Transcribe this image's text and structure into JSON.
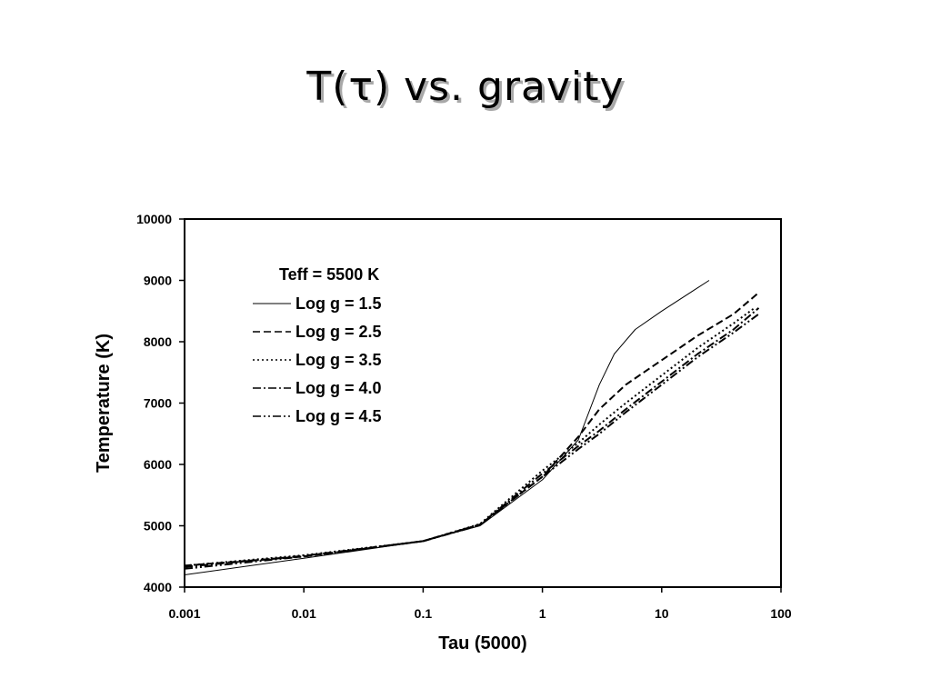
{
  "slide": {
    "title": "T(τ) vs. gravity"
  },
  "chart_data": {
    "type": "line",
    "title": "",
    "xlabel": "Tau (5000)",
    "ylabel": "Temperature (K)",
    "xscale": "log",
    "xlim": [
      0.001,
      100
    ],
    "ylim": [
      4000,
      10000
    ],
    "xticks": [
      "0.001",
      "0.01",
      "0.1",
      "1",
      "10",
      "100"
    ],
    "yticks": [
      "4000",
      "5000",
      "6000",
      "7000",
      "8000",
      "9000",
      "10000"
    ],
    "grid": false,
    "legend": {
      "placement": "top-left",
      "title": "Teff = 5500 K"
    },
    "series": [
      {
        "name": "Log g = 1.5",
        "dash": "solid",
        "x": [
          0.001,
          0.01,
          0.1,
          0.3,
          1,
          2,
          3,
          4,
          6,
          10,
          25
        ],
        "y": [
          4200,
          4470,
          4750,
          5000,
          5750,
          6400,
          7300,
          7800,
          8200,
          8500,
          9000
        ]
      },
      {
        "name": "Log g = 2.5",
        "dash": "dashed",
        "x": [
          0.001,
          0.01,
          0.1,
          0.3,
          1,
          2,
          3,
          5,
          10,
          20,
          40,
          65
        ],
        "y": [
          4350,
          4500,
          4750,
          5020,
          5800,
          6450,
          6900,
          7300,
          7700,
          8100,
          8450,
          8800
        ]
      },
      {
        "name": "Log g = 3.5",
        "dash": "dotted",
        "x": [
          0.001,
          0.01,
          0.1,
          0.3,
          1,
          2,
          3,
          5,
          10,
          20,
          40,
          60
        ],
        "y": [
          4350,
          4520,
          4750,
          5030,
          5900,
          6350,
          6650,
          7000,
          7450,
          7900,
          8300,
          8550
        ]
      },
      {
        "name": "Log g = 4.0",
        "dash": "dashdot",
        "x": [
          0.001,
          0.01,
          0.1,
          0.3,
          1,
          2,
          3,
          5,
          10,
          20,
          40,
          65
        ],
        "y": [
          4330,
          4510,
          4750,
          5020,
          5850,
          6300,
          6550,
          6900,
          7350,
          7800,
          8200,
          8550
        ]
      },
      {
        "name": "Log g = 4.5",
        "dash": "dashdotdot",
        "x": [
          0.001,
          0.01,
          0.1,
          0.3,
          1,
          2,
          3,
          5,
          10,
          20,
          40,
          65
        ],
        "y": [
          4300,
          4500,
          4750,
          5010,
          5800,
          6250,
          6500,
          6850,
          7300,
          7750,
          8150,
          8450
        ]
      }
    ]
  }
}
